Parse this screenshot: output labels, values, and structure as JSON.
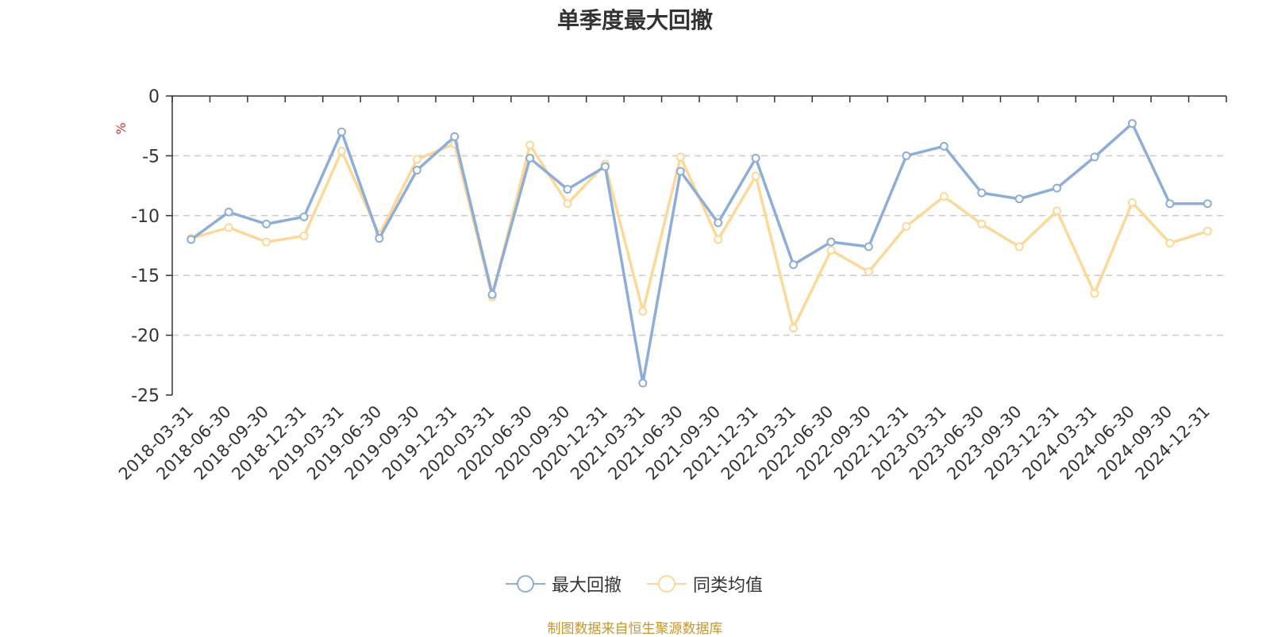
{
  "title": "单季度最大回撤",
  "source": "制图数据来自恒生聚源数据库",
  "chart_data": {
    "type": "line",
    "title": "单季度最大回撤",
    "ylabel": "%",
    "xlabel": "",
    "ylim": [
      -25,
      0
    ],
    "yticks": [
      0,
      -5,
      -10,
      -15,
      -20,
      -25
    ],
    "grid": true,
    "legend_position": "bottom",
    "categories": [
      "2018-03-31",
      "2018-06-30",
      "2018-09-30",
      "2018-12-31",
      "2019-03-31",
      "2019-06-30",
      "2019-09-30",
      "2019-12-31",
      "2020-03-31",
      "2020-06-30",
      "2020-09-30",
      "2020-12-31",
      "2021-03-31",
      "2021-06-30",
      "2021-09-30",
      "2021-12-31",
      "2022-03-31",
      "2022-06-30",
      "2022-09-30",
      "2022-12-31",
      "2023-03-31",
      "2023-06-30",
      "2023-09-30",
      "2023-12-31",
      "2024-03-31",
      "2024-06-30",
      "2024-09-30",
      "2024-12-31"
    ],
    "series": [
      {
        "name": "最大回撤",
        "color": "#8eadd8",
        "values": [
          -12.0,
          -9.7,
          -10.7,
          -10.1,
          -3.0,
          -11.9,
          -6.2,
          -3.4,
          -16.6,
          -5.2,
          -7.8,
          -5.9,
          -24.0,
          -6.3,
          -10.6,
          -5.2,
          -14.1,
          -12.2,
          -12.6,
          -5.0,
          -4.2,
          -8.1,
          -8.6,
          -7.7,
          -5.1,
          -2.3,
          -9.0,
          -9.0
        ]
      },
      {
        "name": "同类均值",
        "color": "#fcd899",
        "values": [
          -11.9,
          -11.0,
          -12.2,
          -11.7,
          -4.6,
          -11.6,
          -5.3,
          -4.0,
          -16.8,
          -4.1,
          -9.0,
          -5.7,
          -18.0,
          -5.1,
          -12.0,
          -6.7,
          -19.4,
          -12.9,
          -14.7,
          -10.9,
          -8.4,
          -10.7,
          -12.6,
          -9.6,
          -16.5,
          -8.9,
          -12.3,
          -11.3
        ]
      }
    ]
  }
}
